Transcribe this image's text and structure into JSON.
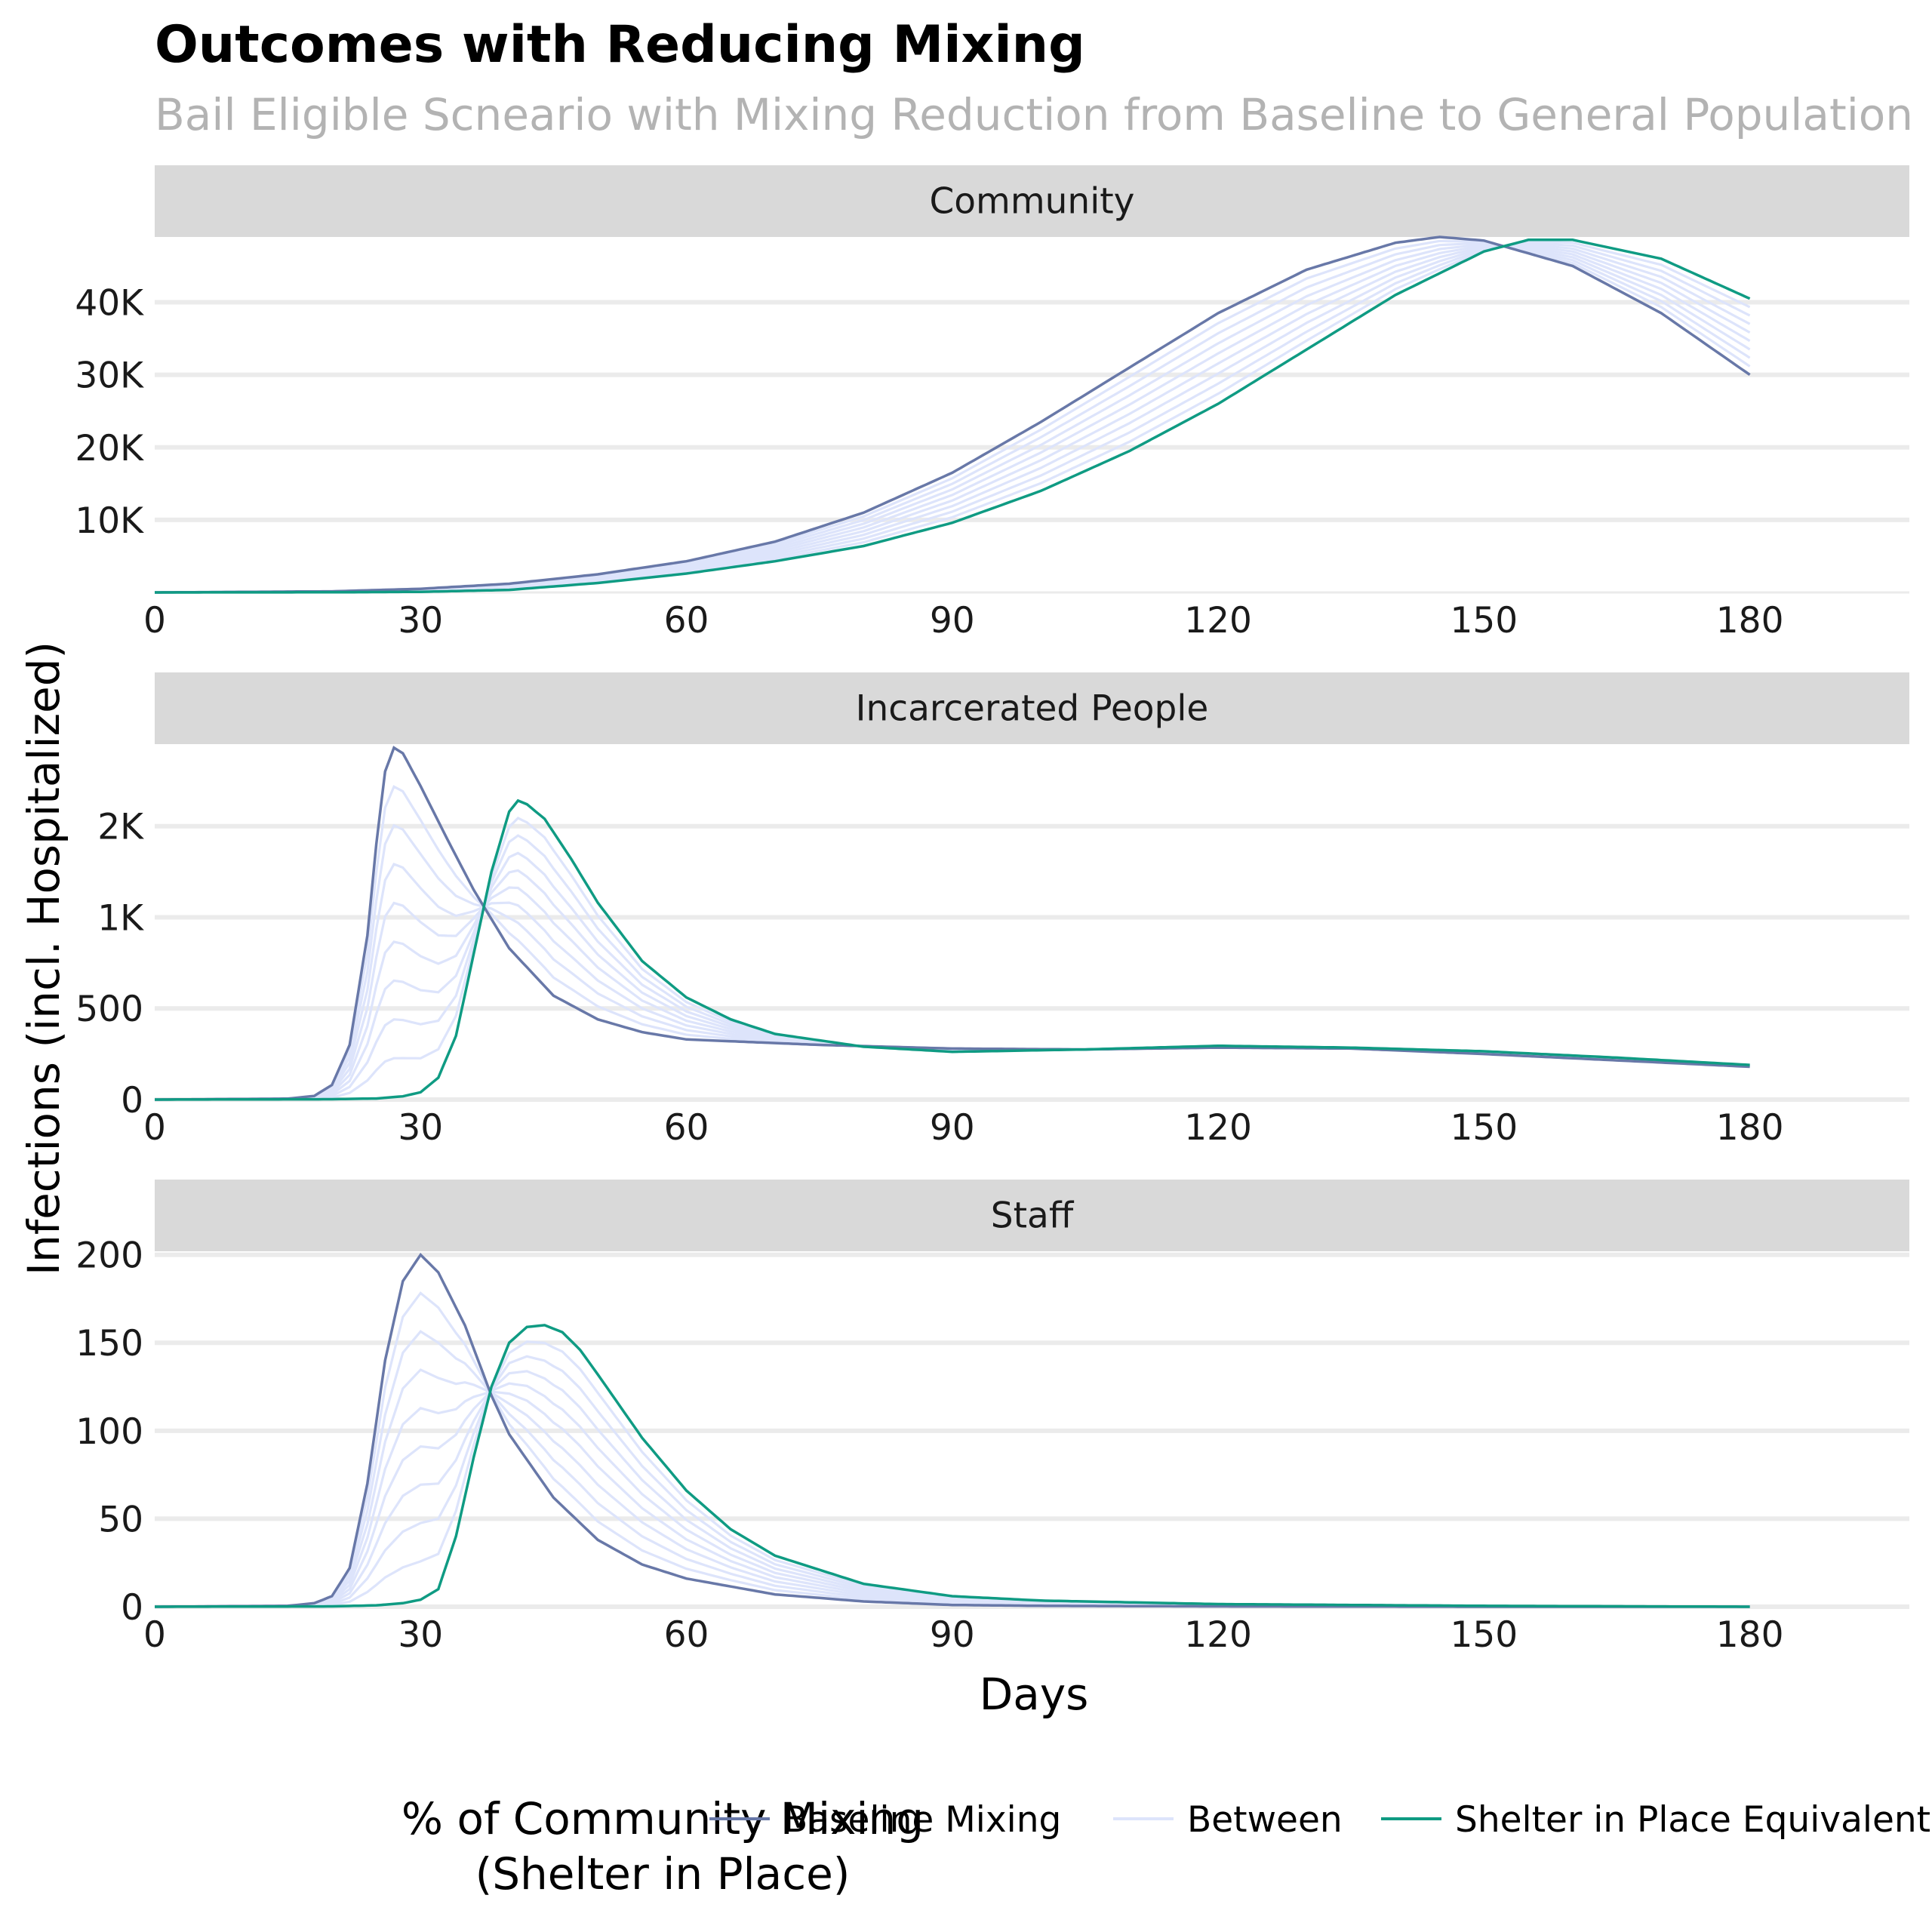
{
  "title": "Outcomes with Reducing Mixing",
  "subtitle": "Bail Eligible Scneario with Mixing Reduction from Baseline to General Population",
  "xlabel": "Days",
  "ylabel": "Infections (incl. Hospitalized)",
  "legend": {
    "title_line1": "% of Community Mixing",
    "title_line2": "(Shelter in Place)",
    "position": "bottom",
    "entries": [
      {
        "label": "Baseline Mixing",
        "color": "#6878a8"
      },
      {
        "label": "Between",
        "color": "#dde4fb"
      },
      {
        "label": "Shelter in Place Equivalent",
        "color": "#0f9b83"
      }
    ]
  },
  "chart_data": {
    "type": "line",
    "x_ticks": [
      "0",
      "30",
      "60",
      "90",
      "120",
      "150",
      "180"
    ],
    "xlim": [
      0,
      198
    ],
    "series_note_between_count": 8,
    "panels": [
      {
        "facet": "Community",
        "y_ticks": [
          {
            "v": 10000,
            "label": "10K"
          },
          {
            "v": 20000,
            "label": "20K"
          },
          {
            "v": 30000,
            "label": "30K"
          },
          {
            "v": 40000,
            "label": "40K"
          }
        ],
        "ylim": [
          0,
          49000
        ],
        "series": [
          {
            "name": "Baseline Mixing",
            "x": [
              0,
              20,
              30,
              40,
              50,
              60,
              70,
              80,
              90,
              100,
              110,
              120,
              130,
              140,
              145,
              150,
              160,
              170,
              180
            ],
            "y": [
              0,
              150,
              500,
              1200,
              2500,
              4300,
              7000,
              11000,
              16500,
              23500,
              31000,
              38500,
              44500,
              48200,
              49000,
              48500,
              45000,
              38500,
              30000
            ]
          },
          {
            "name": "Shelter in Place Equivalent",
            "x": [
              0,
              20,
              30,
              40,
              50,
              60,
              70,
              80,
              90,
              100,
              110,
              120,
              130,
              140,
              150,
              155,
              160,
              170,
              180
            ],
            "y": [
              0,
              20,
              80,
              350,
              1300,
              2600,
              4300,
              6400,
              9600,
              14000,
              19500,
              26000,
              33500,
              41000,
              47000,
              48600,
              48600,
              46000,
              40500
            ]
          }
        ]
      },
      {
        "facet": "Incarcerated People",
        "y_ticks": [
          {
            "v": 0,
            "label": "0"
          },
          {
            "v": 500,
            "label": "500"
          },
          {
            "v": 1000,
            "label": "1K"
          },
          {
            "v": 1500,
            "label": "2K"
          }
        ],
        "ylim": [
          0,
          1950
        ],
        "series": [
          {
            "name": "Baseline Mixing",
            "x": [
              0,
              15,
              18,
              20,
              22,
              24,
              25,
              26,
              27,
              28,
              30,
              33,
              36,
              40,
              45,
              50,
              55,
              60,
              65,
              75,
              90,
              105,
              120,
              135,
              150,
              165,
              180
            ],
            "y": [
              0,
              5,
              20,
              80,
              300,
              900,
              1400,
              1800,
              1930,
              1900,
              1720,
              1430,
              1150,
              830,
              570,
              440,
              370,
              330,
              320,
              300,
              280,
              275,
              285,
              280,
              250,
              215,
              180
            ]
          },
          {
            "name": "Shelter in Place Equivalent",
            "x": [
              0,
              20,
              25,
              28,
              30,
              32,
              34,
              36,
              38,
              40,
              41,
              42,
              44,
              47,
              50,
              55,
              60,
              65,
              70,
              80,
              90,
              105,
              120,
              135,
              150,
              165,
              180
            ],
            "y": [
              0,
              2,
              6,
              18,
              40,
              120,
              350,
              800,
              1250,
              1580,
              1640,
              1620,
              1540,
              1320,
              1080,
              760,
              560,
              440,
              360,
              290,
              262,
              275,
              295,
              285,
              265,
              230,
              190
            ]
          }
        ]
      },
      {
        "facet": "Staff",
        "y_ticks": [
          {
            "v": 0,
            "label": "0"
          },
          {
            "v": 50,
            "label": "50"
          },
          {
            "v": 100,
            "label": "100"
          },
          {
            "v": 150,
            "label": "150"
          },
          {
            "v": 200,
            "label": "200"
          }
        ],
        "ylim": [
          0,
          202
        ],
        "series": [
          {
            "name": "Baseline Mixing",
            "x": [
              0,
              15,
              18,
              20,
              22,
              24,
              26,
              28,
              30,
              32,
              35,
              38,
              40,
              45,
              50,
              55,
              60,
              70,
              80,
              90,
              100,
              120,
              150,
              180
            ],
            "y": [
              0,
              0.5,
              2,
              6,
              22,
              70,
              140,
              185,
              200,
              190,
              160,
              120,
              98,
              62,
              38,
              24,
              16,
              7,
              3,
              1,
              0.5,
              0.2,
              0,
              0
            ]
          },
          {
            "name": "Shelter in Place Equivalent",
            "x": [
              0,
              20,
              25,
              28,
              30,
              32,
              34,
              36,
              38,
              40,
              42,
              44,
              46,
              48,
              50,
              55,
              60,
              65,
              70,
              80,
              90,
              100,
              120,
              150,
              180
            ],
            "y": [
              0,
              0.2,
              0.8,
              2,
              4,
              10,
              40,
              85,
              125,
              150,
              159,
              160,
              156,
              146,
              132,
              96,
              66,
              44,
              29,
              13,
              6,
              3.5,
              1.5,
              0.5,
              0
            ]
          }
        ]
      }
    ]
  }
}
